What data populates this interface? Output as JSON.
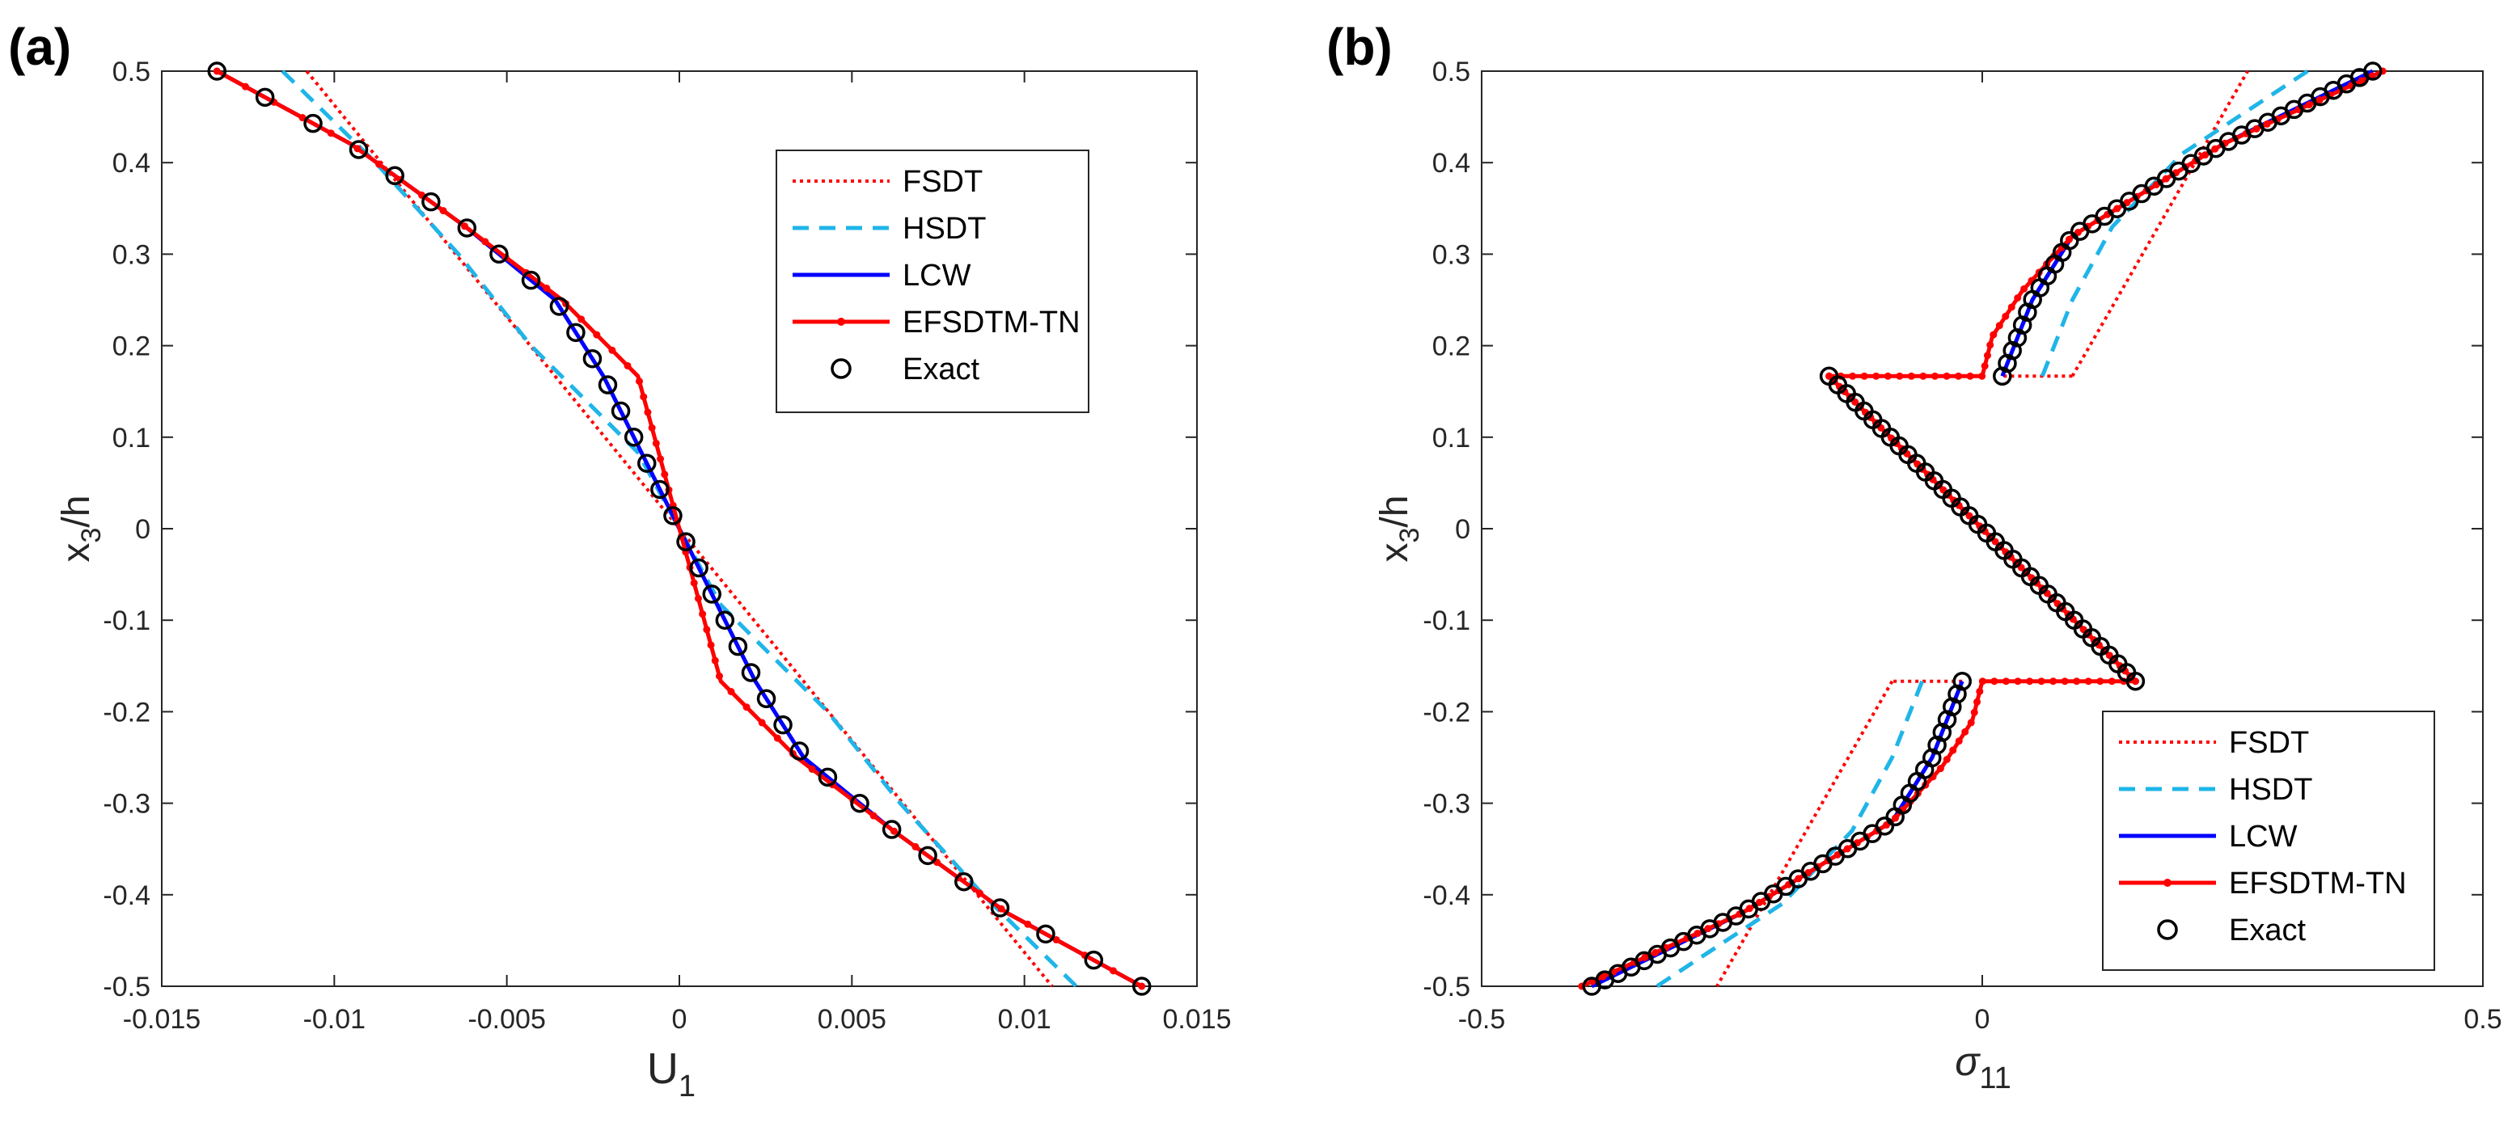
{
  "panels": [
    {
      "label": "(a)",
      "xlabel_main": "U",
      "xlabel_sub": "1",
      "ylabel_main": "x",
      "ylabel_sub": "3",
      "ylabel_tail": "/h",
      "xticks": [
        "-0.015",
        "-0.01",
        "-0.005",
        "0",
        "0.005",
        "0.01",
        "0.015"
      ],
      "yticks": [
        "0.5",
        "0.4",
        "0.3",
        "0.2",
        "0.1",
        "0",
        "-0.1",
        "-0.2",
        "-0.3",
        "-0.4",
        "-0.5"
      ],
      "legend": [
        "FSDT",
        "HSDT",
        "LCW",
        "EFSDTM-TN",
        "Exact"
      ]
    },
    {
      "label": "(b)",
      "xlabel_main": "σ",
      "xlabel_sub": "11",
      "ylabel_main": "x",
      "ylabel_sub": "3",
      "ylabel_tail": "/h",
      "xticks": [
        "-0.5",
        "0",
        "0.5"
      ],
      "yticks": [
        "0.5",
        "0.4",
        "0.3",
        "0.2",
        "0.1",
        "0",
        "-0.1",
        "-0.2",
        "-0.3",
        "-0.4",
        "-0.5"
      ],
      "legend": [
        "FSDT",
        "HSDT",
        "LCW",
        "EFSDTM-TN",
        "Exact"
      ]
    }
  ],
  "colors": {
    "FSDT": "#ff0000",
    "HSDT": "#1fb5e8",
    "LCW": "#0000ff",
    "EFSDTM-TN": "#ff0000",
    "Exact": "#000000"
  },
  "chart_data": [
    {
      "type": "line",
      "xlim": [
        -0.015,
        0.015
      ],
      "ylim": [
        -0.5,
        0.5
      ],
      "grid": false,
      "legend_position": "top-right",
      "series": [
        {
          "name": "FSDT",
          "style": "dotted",
          "points": [
            [
              -0.0108,
              0.5
            ],
            [
              0.0108,
              -0.5
            ]
          ]
        },
        {
          "name": "HSDT",
          "style": "dashed",
          "points": [
            [
              -0.0115,
              0.5
            ],
            [
              -0.0088,
              0.4
            ],
            [
              -0.0064,
              0.3
            ],
            [
              -0.0043,
              0.2
            ],
            [
              -0.0012,
              0.0833
            ],
            [
              0.0,
              0.0
            ],
            [
              0.0012,
              -0.0833
            ],
            [
              0.0043,
              -0.2
            ],
            [
              0.0064,
              -0.3
            ],
            [
              0.0088,
              -0.4
            ],
            [
              0.0115,
              -0.5
            ]
          ]
        },
        {
          "name": "LCW",
          "style": "solid",
          "points": [
            [
              -0.0134,
              0.5
            ],
            [
              -0.0095,
              0.42
            ],
            [
              -0.0062,
              0.33
            ],
            [
              -0.0036,
              0.25
            ],
            [
              -0.0022,
              0.1667
            ],
            [
              0.0,
              0.0
            ],
            [
              0.0022,
              -0.1667
            ],
            [
              0.0036,
              -0.25
            ],
            [
              0.0062,
              -0.33
            ],
            [
              0.0095,
              -0.42
            ],
            [
              0.0134,
              -0.5
            ]
          ]
        },
        {
          "name": "EFSDTM-TN",
          "style": "solid-markers",
          "points": [
            [
              -0.0134,
              0.5
            ],
            [
              -0.0095,
              0.42
            ],
            [
              -0.0062,
              0.33
            ],
            [
              -0.0034,
              0.25
            ],
            [
              -0.0012,
              0.1667
            ],
            [
              0.0,
              0.0
            ],
            [
              0.0012,
              -0.1667
            ],
            [
              0.0034,
              -0.25
            ],
            [
              0.0062,
              -0.33
            ],
            [
              0.0095,
              -0.42
            ],
            [
              0.0134,
              -0.5
            ]
          ]
        },
        {
          "name": "Exact",
          "style": "markers",
          "points": [
            [
              -0.0134,
              0.5
            ],
            [
              -0.0095,
              0.42
            ],
            [
              -0.0062,
              0.33
            ],
            [
              -0.0036,
              0.25
            ],
            [
              -0.0022,
              0.1667
            ],
            [
              0.0,
              0.0
            ],
            [
              0.0022,
              -0.1667
            ],
            [
              0.0036,
              -0.25
            ],
            [
              0.0062,
              -0.33
            ],
            [
              0.0095,
              -0.42
            ],
            [
              0.0134,
              -0.5
            ]
          ]
        }
      ]
    },
    {
      "type": "line",
      "xlim": [
        -0.5,
        0.5
      ],
      "ylim": [
        -0.5,
        0.5
      ],
      "grid": false,
      "legend_position": "bottom-right",
      "series": [
        {
          "name": "FSDT",
          "style": "dotted",
          "segments": [
            [
              [
                0.09,
                0.1667
              ],
              [
                0.265,
                0.5
              ]
            ],
            [
              [
                0.09,
                0.1667
              ],
              [
                0.02,
                0.1667
              ]
            ],
            [
              [
                -0.153,
                0.1667
              ],
              [
                0.153,
                -0.1667
              ]
            ],
            [
              [
                -0.02,
                -0.1667
              ],
              [
                -0.09,
                -0.1667
              ]
            ],
            [
              [
                -0.09,
                -0.1667
              ],
              [
                -0.265,
                -0.5
              ]
            ]
          ]
        },
        {
          "name": "HSDT",
          "style": "dashed",
          "segments": [
            [
              [
                0.06,
                0.1667
              ],
              [
                0.09,
                0.25
              ],
              [
                0.13,
                0.33
              ],
              [
                0.2,
                0.41
              ],
              [
                0.325,
                0.5
              ]
            ],
            [
              [
                -0.06,
                -0.1667
              ],
              [
                -0.09,
                -0.25
              ],
              [
                -0.13,
                -0.33
              ],
              [
                -0.2,
                -0.41
              ],
              [
                -0.325,
                -0.5
              ]
            ]
          ]
        },
        {
          "name": "LCW",
          "style": "solid",
          "segments": [
            [
              [
                0.02,
                0.1667
              ],
              [
                0.05,
                0.25
              ],
              [
                0.09,
                0.32
              ],
              [
                0.15,
                0.36
              ],
              [
                0.24,
                0.42
              ],
              [
                0.39,
                0.5
              ]
            ],
            [
              [
                -0.153,
                0.1667
              ],
              [
                0.153,
                -0.1667
              ]
            ],
            [
              [
                -0.02,
                -0.1667
              ],
              [
                -0.05,
                -0.25
              ],
              [
                -0.09,
                -0.32
              ],
              [
                -0.15,
                -0.36
              ],
              [
                -0.24,
                -0.42
              ],
              [
                -0.39,
                -0.5
              ]
            ]
          ]
        },
        {
          "name": "EFSDTM-TN",
          "style": "solid-markers",
          "segments": [
            [
              [
                -0.153,
                0.1667
              ],
              [
                0.0,
                0.1667
              ],
              [
                0.01,
                0.21
              ],
              [
                0.04,
                0.26
              ],
              [
                0.09,
                0.32
              ],
              [
                0.15,
                0.36
              ],
              [
                0.24,
                0.42
              ],
              [
                0.4,
                0.5
              ]
            ],
            [
              [
                -0.153,
                0.1667
              ],
              [
                0.153,
                -0.1667
              ]
            ],
            [
              [
                0.153,
                -0.1667
              ],
              [
                0.0,
                -0.1667
              ],
              [
                -0.01,
                -0.21
              ],
              [
                -0.04,
                -0.26
              ],
              [
                -0.09,
                -0.32
              ],
              [
                -0.15,
                -0.36
              ],
              [
                -0.24,
                -0.42
              ],
              [
                -0.4,
                -0.5
              ]
            ]
          ]
        },
        {
          "name": "Exact",
          "style": "markers",
          "segments": [
            [
              [
                0.02,
                0.1667
              ],
              [
                0.05,
                0.25
              ],
              [
                0.09,
                0.32
              ],
              [
                0.15,
                0.36
              ],
              [
                0.24,
                0.42
              ],
              [
                0.39,
                0.5
              ]
            ],
            [
              [
                -0.153,
                0.1667
              ],
              [
                0.153,
                -0.1667
              ]
            ],
            [
              [
                -0.02,
                -0.1667
              ],
              [
                -0.05,
                -0.25
              ],
              [
                -0.09,
                -0.32
              ],
              [
                -0.15,
                -0.36
              ],
              [
                -0.24,
                -0.42
              ],
              [
                -0.39,
                -0.5
              ]
            ]
          ]
        }
      ]
    }
  ]
}
